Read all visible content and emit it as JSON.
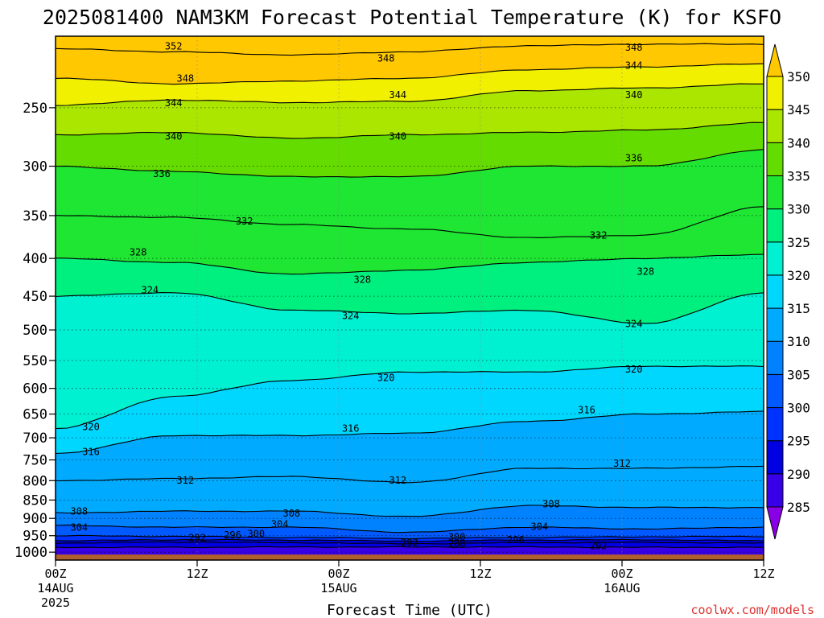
{
  "chart_data": {
    "type": "heatmap",
    "title": "2025081400 NAM3KM Forecast Potential Temperature (K) for KSFO",
    "xlabel": "Forecast Time (UTC)",
    "ylabel": "",
    "credit": "coolwx.com/models",
    "x_ticks": [
      {
        "hours": 0,
        "label": "00Z",
        "sub1": "14AUG",
        "sub2": "2025"
      },
      {
        "hours": 12,
        "label": "12Z",
        "sub1": "",
        "sub2": ""
      },
      {
        "hours": 24,
        "label": "00Z",
        "sub1": "15AUG",
        "sub2": ""
      },
      {
        "hours": 36,
        "label": "12Z",
        "sub1": "",
        "sub2": ""
      },
      {
        "hours": 48,
        "label": "00Z",
        "sub1": "16AUG",
        "sub2": ""
      },
      {
        "hours": 60,
        "label": "12Z",
        "sub1": "",
        "sub2": ""
      }
    ],
    "xlim": [
      0,
      60
    ],
    "y_ticks": [
      250,
      300,
      350,
      400,
      450,
      500,
      550,
      600,
      650,
      700,
      750,
      800,
      850,
      900,
      950,
      1000
    ],
    "ylim": [
      1025,
      200
    ],
    "y_scale": "log-pressure",
    "colorbar": {
      "levels": [
        285,
        290,
        295,
        300,
        305,
        310,
        315,
        320,
        325,
        330,
        335,
        340,
        345,
        350
      ],
      "colors": [
        "#8a00e6",
        "#3800e8",
        "#0000e0",
        "#0032ff",
        "#005aff",
        "#0082ff",
        "#00aaff",
        "#00d7ff",
        "#00f0d2",
        "#00f080",
        "#1ee632",
        "#64dc00",
        "#aae600",
        "#f0f000",
        "#ffc800"
      ]
    },
    "contour_interval": 4,
    "series": [
      {
        "value": 288,
        "pressure": [
          985,
          985,
          984,
          984,
          984,
          985,
          985
        ]
      },
      {
        "value": 292,
        "pressure": [
          972,
          969,
          971,
          974,
          971,
          970,
          972
        ]
      },
      {
        "value": 296,
        "pressure": [
          965,
          962,
          963,
          966,
          963,
          962,
          965
        ]
      },
      {
        "value": 300,
        "pressure": [
          950,
          952,
          955,
          958,
          955,
          953,
          952
        ]
      },
      {
        "value": 304,
        "pressure": [
          920,
          925,
          925,
          940,
          925,
          930,
          925
        ]
      },
      {
        "value": 308,
        "pressure": [
          885,
          880,
          880,
          895,
          865,
          870,
          870
        ]
      },
      {
        "value": 312,
        "pressure": [
          800,
          795,
          790,
          805,
          770,
          770,
          765
        ]
      },
      {
        "value": 316,
        "pressure": [
          735,
          695,
          695,
          690,
          665,
          650,
          645
        ]
      },
      {
        "value": 320,
        "pressure": [
          680,
          615,
          585,
          570,
          570,
          560,
          560
        ]
      },
      {
        "value": 324,
        "pressure": [
          450,
          445,
          470,
          475,
          470,
          490,
          445
        ]
      },
      {
        "value": 328,
        "pressure": [
          400,
          405,
          420,
          415,
          405,
          400,
          395
        ]
      },
      {
        "value": 332,
        "pressure": [
          350,
          352,
          360,
          365,
          375,
          372,
          340
        ]
      },
      {
        "value": 336,
        "pressure": [
          300,
          305,
          310,
          310,
          300,
          300,
          285
        ]
      },
      {
        "value": 340,
        "pressure": [
          272,
          270,
          275,
          272,
          270,
          268,
          262
        ]
      },
      {
        "value": 344,
        "pressure": [
          248,
          244,
          246,
          245,
          237,
          235,
          232
        ]
      },
      {
        "value": 348,
        "pressure": [
          228,
          232,
          230,
          228,
          222,
          220,
          218
        ]
      },
      {
        "value": 352,
        "pressure": [
          208,
          210,
          212,
          210,
          206,
          205,
          205
        ]
      }
    ],
    "contour_labels": [
      {
        "value": "352",
        "hours": 10,
        "pressure": 206
      },
      {
        "value": "348",
        "hours": 11,
        "pressure": 228
      },
      {
        "value": "348",
        "hours": 28,
        "pressure": 214
      },
      {
        "value": "348",
        "hours": 49,
        "pressure": 207
      },
      {
        "value": "344",
        "hours": 10,
        "pressure": 246
      },
      {
        "value": "344",
        "hours": 29,
        "pressure": 240
      },
      {
        "value": "344",
        "hours": 49,
        "pressure": 219
      },
      {
        "value": "340",
        "hours": 10,
        "pressure": 273
      },
      {
        "value": "340",
        "hours": 29,
        "pressure": 273
      },
      {
        "value": "340",
        "hours": 49,
        "pressure": 240
      },
      {
        "value": "336",
        "hours": 9,
        "pressure": 307
      },
      {
        "value": "336",
        "hours": 49,
        "pressure": 292
      },
      {
        "value": "332",
        "hours": 16,
        "pressure": 356
      },
      {
        "value": "332",
        "hours": 46,
        "pressure": 372
      },
      {
        "value": "328",
        "hours": 7,
        "pressure": 392
      },
      {
        "value": "328",
        "hours": 26,
        "pressure": 427
      },
      {
        "value": "328",
        "hours": 50,
        "pressure": 416
      },
      {
        "value": "324",
        "hours": 8,
        "pressure": 441
      },
      {
        "value": "324",
        "hours": 25,
        "pressure": 478
      },
      {
        "value": "324",
        "hours": 49,
        "pressure": 490
      },
      {
        "value": "320",
        "hours": 3,
        "pressure": 676
      },
      {
        "value": "320",
        "hours": 28,
        "pressure": 580
      },
      {
        "value": "320",
        "hours": 49,
        "pressure": 565
      },
      {
        "value": "316",
        "hours": 3,
        "pressure": 730
      },
      {
        "value": "316",
        "hours": 25,
        "pressure": 679
      },
      {
        "value": "316",
        "hours": 45,
        "pressure": 641
      },
      {
        "value": "312",
        "hours": 11,
        "pressure": 798
      },
      {
        "value": "312",
        "hours": 29,
        "pressure": 798
      },
      {
        "value": "312",
        "hours": 48,
        "pressure": 757
      },
      {
        "value": "308",
        "hours": 2,
        "pressure": 880
      },
      {
        "value": "308",
        "hours": 20,
        "pressure": 885
      },
      {
        "value": "308",
        "hours": 42,
        "pressure": 860
      },
      {
        "value": "304",
        "hours": 2,
        "pressure": 925
      },
      {
        "value": "304",
        "hours": 19,
        "pressure": 915
      },
      {
        "value": "304",
        "hours": 41,
        "pressure": 922
      },
      {
        "value": "300",
        "hours": 17,
        "pressure": 944
      },
      {
        "value": "300",
        "hours": 34,
        "pressure": 953
      },
      {
        "value": "296",
        "hours": 15,
        "pressure": 947
      },
      {
        "value": "296",
        "hours": 39,
        "pressure": 962
      },
      {
        "value": "292",
        "hours": 12,
        "pressure": 956
      },
      {
        "value": "292",
        "hours": 30,
        "pressure": 970
      },
      {
        "value": "292",
        "hours": 46,
        "pressure": 980
      },
      {
        "value": "288",
        "hours": 34,
        "pressure": 972
      }
    ]
  }
}
